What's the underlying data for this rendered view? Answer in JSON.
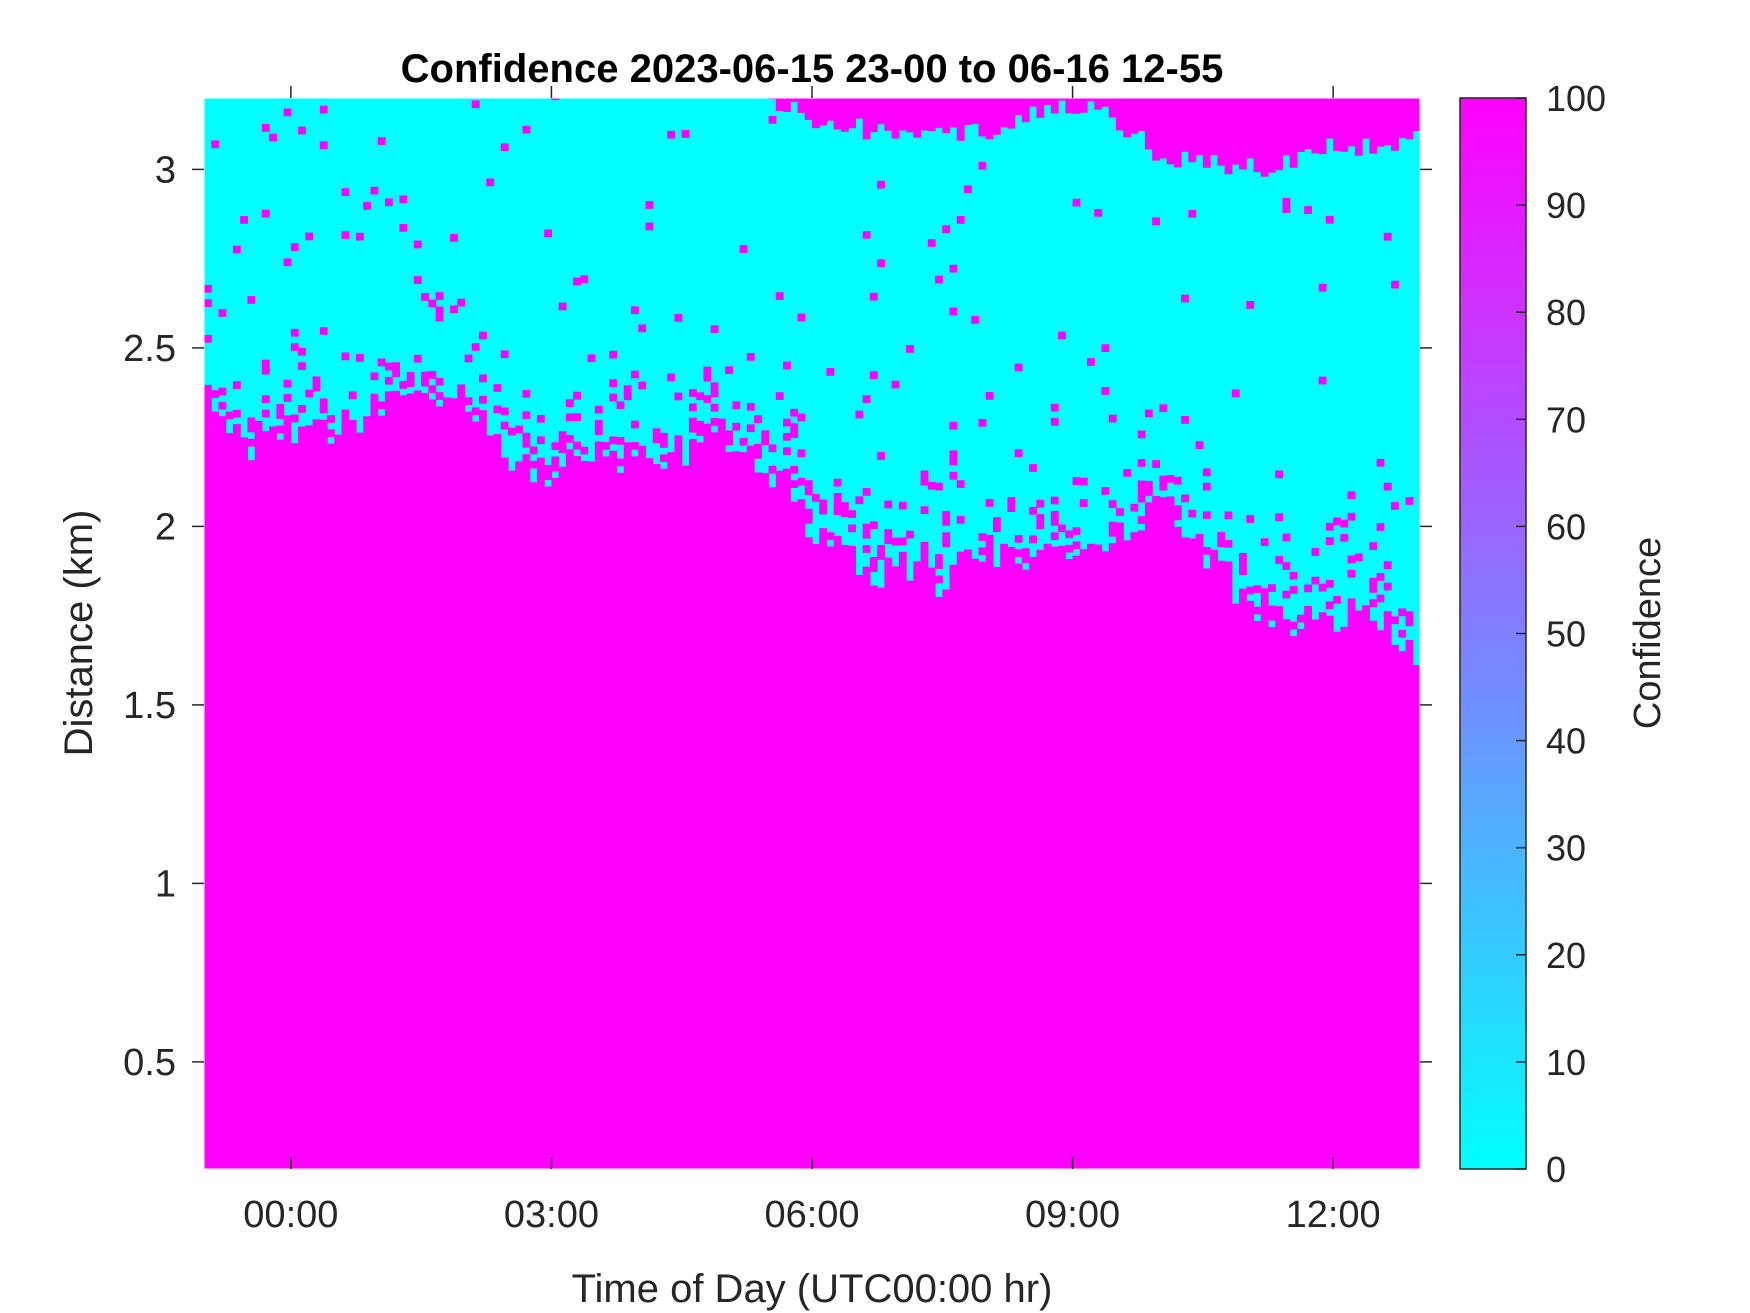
{
  "chart_data": {
    "type": "heatmap",
    "title": "Confidence 2023-06-15 23-00 to 06-16 12-55",
    "xlabel": "Time of Day (UTC00:00 hr)",
    "ylabel": "Distance (km)",
    "xlim_hours": [
      -1.0,
      13.0
    ],
    "ylim": [
      0.2,
      3.2
    ],
    "x_ticks": [
      {
        "value": 0,
        "label": "00:00"
      },
      {
        "value": 3,
        "label": "03:00"
      },
      {
        "value": 6,
        "label": "06:00"
      },
      {
        "value": 9,
        "label": "09:00"
      },
      {
        "value": 12,
        "label": "12:00"
      }
    ],
    "y_ticks": [
      {
        "value": 0.5,
        "label": "0.5"
      },
      {
        "value": 1.0,
        "label": "1"
      },
      {
        "value": 1.5,
        "label": "1.5"
      },
      {
        "value": 2.0,
        "label": "2"
      },
      {
        "value": 2.5,
        "label": "2.5"
      },
      {
        "value": 3.0,
        "label": "3"
      }
    ],
    "colorbar": {
      "label": "Confidence",
      "range": [
        0,
        100
      ],
      "ticks": [
        {
          "value": 0,
          "label": "0"
        },
        {
          "value": 10,
          "label": "10"
        },
        {
          "value": 20,
          "label": "20"
        },
        {
          "value": 30,
          "label": "30"
        },
        {
          "value": 40,
          "label": "40"
        },
        {
          "value": 50,
          "label": "50"
        },
        {
          "value": 60,
          "label": "60"
        },
        {
          "value": 70,
          "label": "70"
        },
        {
          "value": 80,
          "label": "80"
        },
        {
          "value": 90,
          "label": "90"
        },
        {
          "value": 100,
          "label": "100"
        }
      ],
      "color_low": "#00ffff",
      "color_high": "#ff00ff"
    },
    "values_observed": [
      0,
      100
    ],
    "high_confidence_top_km": [
      {
        "x": -1.0,
        "y": 2.38
      },
      {
        "x": -0.5,
        "y": 2.22
      },
      {
        "x": 0.0,
        "y": 2.25
      },
      {
        "x": 0.5,
        "y": 2.28
      },
      {
        "x": 1.0,
        "y": 2.33
      },
      {
        "x": 1.5,
        "y": 2.35
      },
      {
        "x": 2.0,
        "y": 2.37
      },
      {
        "x": 2.5,
        "y": 2.2
      },
      {
        "x": 3.0,
        "y": 2.15
      },
      {
        "x": 3.5,
        "y": 2.2
      },
      {
        "x": 4.0,
        "y": 2.2
      },
      {
        "x": 4.5,
        "y": 2.18
      },
      {
        "x": 5.0,
        "y": 2.22
      },
      {
        "x": 5.5,
        "y": 2.15
      },
      {
        "x": 6.0,
        "y": 2.0
      },
      {
        "x": 6.5,
        "y": 1.88
      },
      {
        "x": 7.0,
        "y": 1.87
      },
      {
        "x": 7.5,
        "y": 1.85
      },
      {
        "x": 8.0,
        "y": 1.93
      },
      {
        "x": 8.5,
        "y": 1.88
      },
      {
        "x": 9.0,
        "y": 1.92
      },
      {
        "x": 9.5,
        "y": 1.96
      },
      {
        "x": 10.0,
        "y": 2.05
      },
      {
        "x": 10.5,
        "y": 1.93
      },
      {
        "x": 11.0,
        "y": 1.8
      },
      {
        "x": 11.5,
        "y": 1.68
      },
      {
        "x": 12.0,
        "y": 1.72
      },
      {
        "x": 12.5,
        "y": 1.75
      },
      {
        "x": 13.0,
        "y": 1.62
      }
    ],
    "upper_high_confidence_bottom_km": [
      {
        "x": 5.5,
        "y": 3.2
      },
      {
        "x": 6.0,
        "y": 3.14
      },
      {
        "x": 6.5,
        "y": 3.12
      },
      {
        "x": 7.0,
        "y": 3.08
      },
      {
        "x": 7.5,
        "y": 3.1
      },
      {
        "x": 8.0,
        "y": 3.1
      },
      {
        "x": 8.5,
        "y": 3.15
      },
      {
        "x": 9.0,
        "y": 3.18
      },
      {
        "x": 9.5,
        "y": 3.14
      },
      {
        "x": 10.0,
        "y": 3.04
      },
      {
        "x": 10.5,
        "y": 3.02
      },
      {
        "x": 11.0,
        "y": 3.0
      },
      {
        "x": 11.5,
        "y": 3.02
      },
      {
        "x": 12.0,
        "y": 3.08
      },
      {
        "x": 12.5,
        "y": 3.05
      },
      {
        "x": 13.0,
        "y": 3.1
      }
    ]
  }
}
